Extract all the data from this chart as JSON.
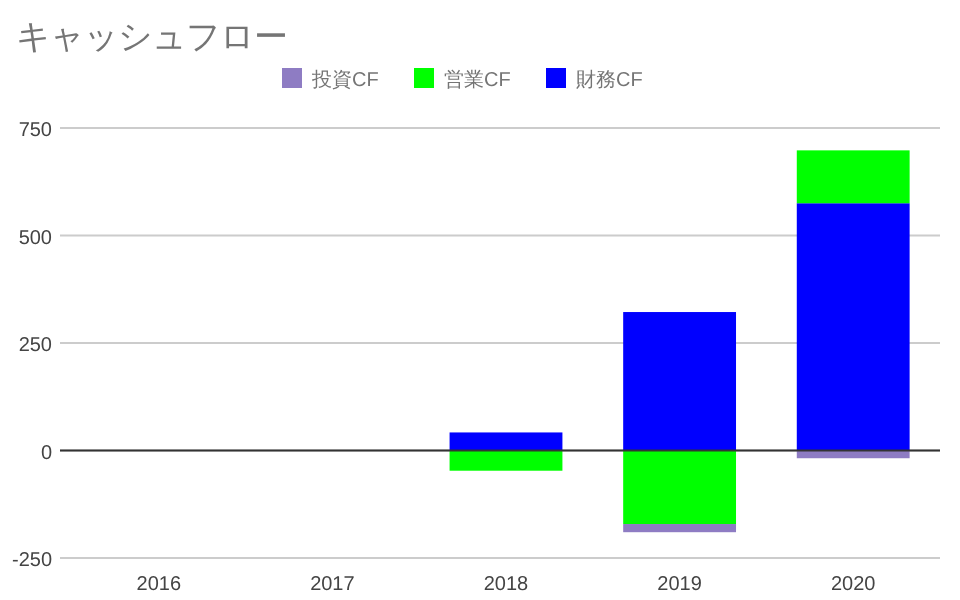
{
  "chart_data": {
    "type": "bar",
    "title": "キャッシュフロー",
    "categories": [
      "2016",
      "2017",
      "2018",
      "2019",
      "2020"
    ],
    "stacked": true,
    "series": [
      {
        "name": "財務CF",
        "color": "#0000ff",
        "values": [
          0,
          0,
          42,
          322,
          575
        ]
      },
      {
        "name": "営業CF",
        "color": "#00ff00",
        "values": [
          0,
          0,
          -47,
          -171,
          123
        ]
      },
      {
        "name": "投資CF",
        "color": "#8e7cc3",
        "values": [
          0,
          0,
          0,
          -19,
          -18
        ]
      }
    ],
    "ylim": [
      -250,
      750
    ],
    "yticks": [
      -250,
      0,
      250,
      500,
      750
    ],
    "grid": "y",
    "legend": "top"
  }
}
